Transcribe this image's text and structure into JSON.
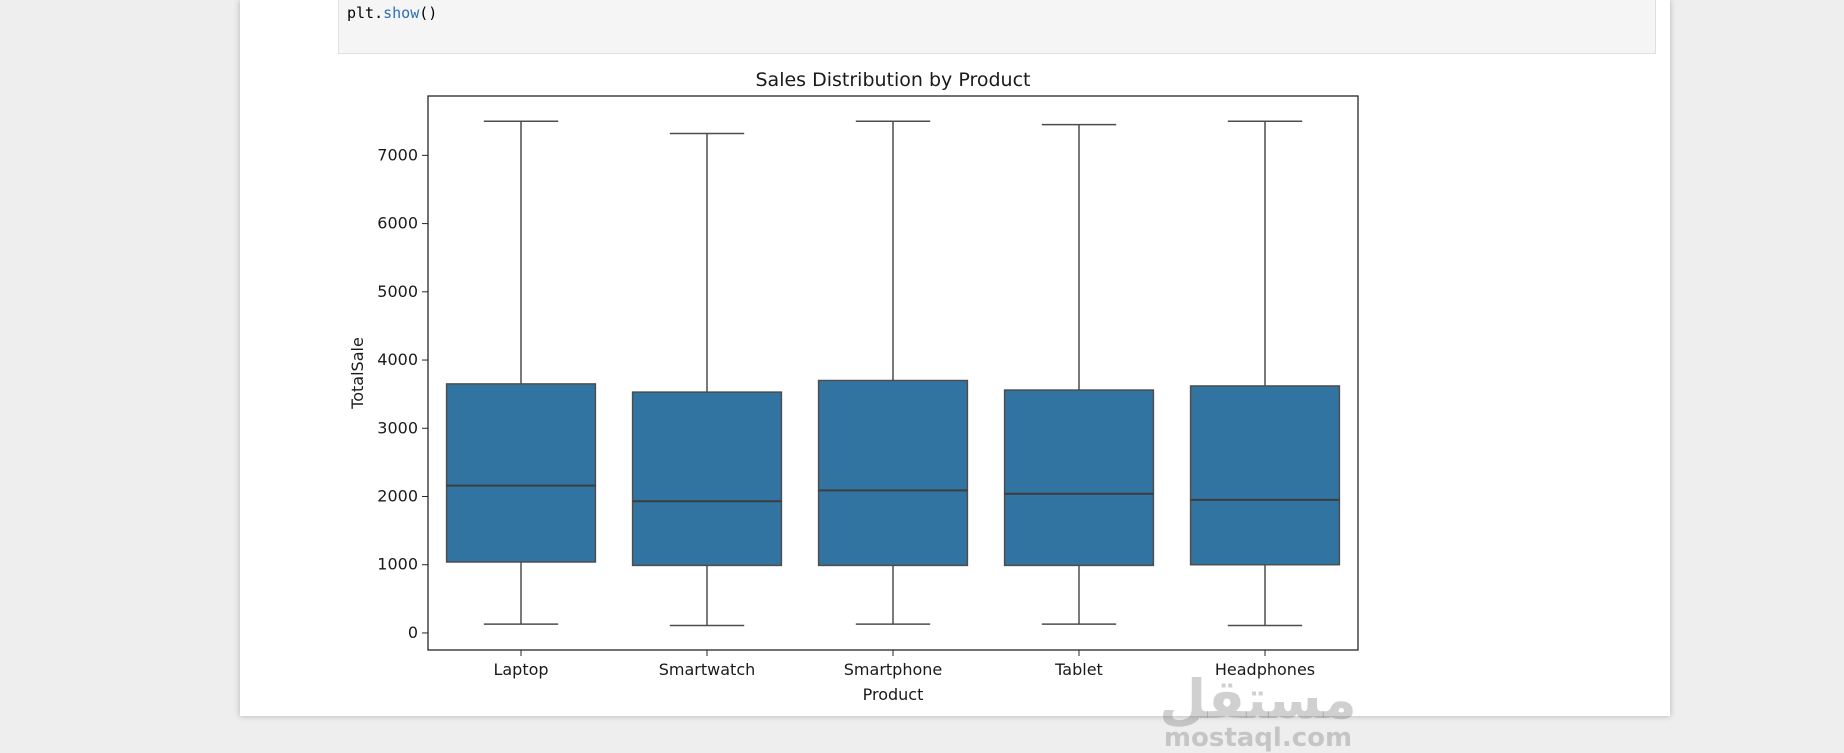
{
  "code": {
    "line_prefix": "plt.",
    "line_fn": "show",
    "line_suffix": "()"
  },
  "watermark": {
    "arabic": "مستقل",
    "latin": "mostaql.com"
  },
  "colors": {
    "box_fill": "#3274a1",
    "median": "#3d3d3d",
    "whisker": "#4d4d4d",
    "axis": "#262626"
  },
  "chart_data": {
    "type": "box",
    "title": "Sales Distribution by Product",
    "xlabel": "Product",
    "ylabel": "TotalSale",
    "ylim": [
      -250,
      7870
    ],
    "yticks": [
      0,
      1000,
      2000,
      3000,
      4000,
      5000,
      6000,
      7000
    ],
    "categories": [
      "Laptop",
      "Smartwatch",
      "Smartphone",
      "Tablet",
      "Headphones"
    ],
    "boxes": [
      {
        "category": "Laptop",
        "min": 130,
        "q1": 1040,
        "median": 2160,
        "q3": 3650,
        "max": 7500
      },
      {
        "category": "Smartwatch",
        "min": 110,
        "q1": 990,
        "median": 1930,
        "q3": 3530,
        "max": 7320
      },
      {
        "category": "Smartphone",
        "min": 130,
        "q1": 990,
        "median": 2090,
        "q3": 3700,
        "max": 7500
      },
      {
        "category": "Tablet",
        "min": 130,
        "q1": 990,
        "median": 2040,
        "q3": 3560,
        "max": 7450
      },
      {
        "category": "Headphones",
        "min": 110,
        "q1": 1000,
        "median": 1950,
        "q3": 3620,
        "max": 7500
      }
    ],
    "grid": false,
    "legend": "none"
  }
}
